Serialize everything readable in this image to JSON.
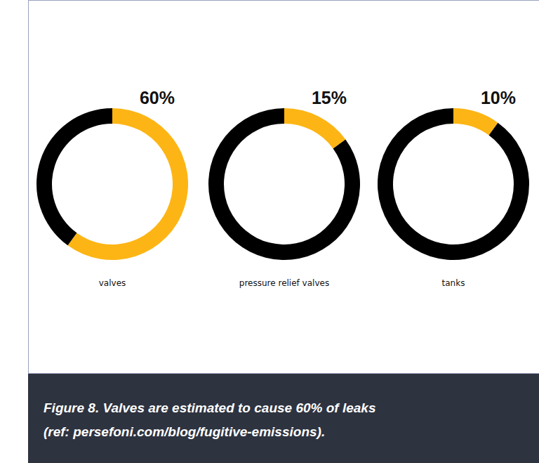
{
  "chart_data": [
    {
      "type": "pie",
      "title": "valves",
      "categories": [
        "valves",
        null
      ],
      "values": [
        60,
        40
      ],
      "value_labels": [
        "60%",
        null
      ],
      "colors": [
        "#fdb515",
        "#000000"
      ]
    },
    {
      "type": "pie",
      "title": "pressure relief valves",
      "categories": [
        "pressure relief valves",
        null
      ],
      "values": [
        15,
        85
      ],
      "value_labels": [
        "15%",
        null
      ],
      "colors": [
        "#fdb515",
        "#000000"
      ]
    },
    {
      "type": "pie",
      "title": "tanks",
      "categories": [
        "tanks",
        null
      ],
      "values": [
        10,
        90
      ],
      "value_labels": [
        "10%",
        null
      ],
      "colors": [
        "#fdb515",
        "#000000"
      ]
    }
  ],
  "caption": [
    "Figure 8. Valves are estimated to cause 60% of leaks",
    "(ref: persefoni.com/blog/fugitive-emissions)."
  ]
}
